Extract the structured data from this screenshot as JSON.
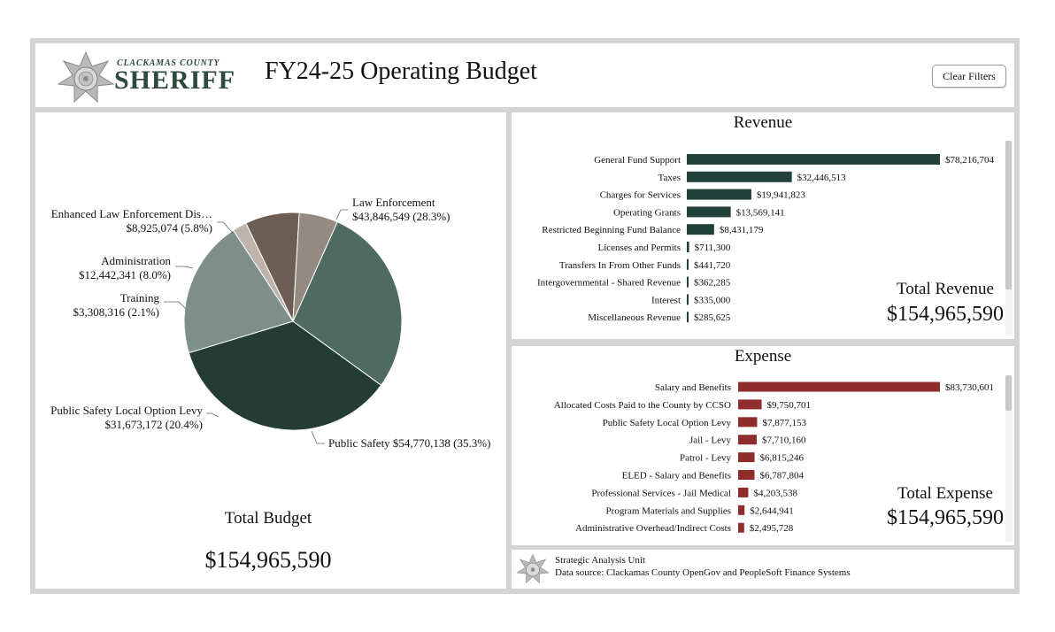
{
  "header": {
    "logo_county": "CLACKAMAS COUNTY",
    "logo_sheriff": "SHERIFF",
    "title": "FY24-25 Operating Budget",
    "clear_filters_label": "Clear Filters"
  },
  "pie": {
    "total_label": "Total Budget",
    "total_value": "$154,965,590",
    "labels": [
      {
        "line1": "Law Enforcement",
        "line2": "$43,846,549 (28.3%)"
      },
      {
        "line1": "Public Safety $54,770,138 (35.3%)",
        "line2": ""
      },
      {
        "line1": "Public Safety Local Option Levy",
        "line2": "$31,673,172 (20.4%)"
      },
      {
        "line1": "Training",
        "line2": "$3,308,316 (2.1%)"
      },
      {
        "line1": "Administration",
        "line2": "$12,442,341 (8.0%)"
      },
      {
        "line1": "Enhanced Law Enforcement Dis…",
        "line2": "$8,925,074 (5.8%)"
      }
    ]
  },
  "revenue": {
    "title": "Revenue",
    "total_label": "Total Revenue",
    "total_value": "$154,965,590",
    "color": "#22413a"
  },
  "expense": {
    "title": "Expense",
    "total_label": "Total Expense",
    "total_value": "$154,965,590",
    "color": "#8f2d2d"
  },
  "footer": {
    "line1": "Strategic Analysis Unit",
    "line2": "Data source: Clackamas County OpenGov and PeopleSoft Finance Systems"
  },
  "chart_data": [
    {
      "type": "pie",
      "title": "",
      "slices": [
        {
          "name": "Law Enforcement",
          "value": 43846549,
          "percent": 28.3,
          "color": "#4f6a61"
        },
        {
          "name": "Public Safety",
          "value": 54770138,
          "percent": 35.3,
          "color": "#233d35"
        },
        {
          "name": "Public Safety Local Option Levy",
          "value": 31673172,
          "percent": 20.4,
          "color": "#7d8f88"
        },
        {
          "name": "Training",
          "value": 3308316,
          "percent": 2.1,
          "color": "#bdb4ae"
        },
        {
          "name": "Administration",
          "value": 12442341,
          "percent": 8.0,
          "color": "#6d5e54"
        },
        {
          "name": "Enhanced Law Enforcement Dis…",
          "value": 8925074,
          "percent": 5.8,
          "color": "#958a82"
        }
      ]
    },
    {
      "type": "bar",
      "title": "Revenue",
      "orientation": "horizontal",
      "categories": [
        "General Fund Support",
        "Taxes",
        "Charges for Services",
        "Operating Grants",
        "Restricted Beginning Fund Balance",
        "Licenses and Permits",
        "Transfers In From Other Funds",
        "Intergovernmental - Shared Revenue",
        "Interest",
        "Miscellaneous Revenue"
      ],
      "values": [
        78216704,
        32446513,
        19941823,
        13569141,
        8431179,
        711300,
        441720,
        362285,
        335000,
        285625
      ],
      "value_labels": [
        "$78,216,704",
        "$32,446,513",
        "$19,941,823",
        "$13,569,141",
        "$8,431,179",
        "$711,300",
        "$441,720",
        "$362,285",
        "$335,000",
        "$285,625"
      ]
    },
    {
      "type": "bar",
      "title": "Expense",
      "orientation": "horizontal",
      "categories": [
        "Salary and Benefits",
        "Allocated Costs Paid to the County by CCSO",
        "Public Safety Local Option Levy",
        "Jail - Levy",
        "Patrol - Levy",
        "ELED - Salary and Benefits",
        "Professional Services - Jail Medical",
        "Program Materials and Supplies",
        "Administrative Overhead/Indirect Costs"
      ],
      "values": [
        83730601,
        9750701,
        7877153,
        7710160,
        6815246,
        6787804,
        4203538,
        2644941,
        2495728
      ],
      "value_labels": [
        "$83,730,601",
        "$9,750,701",
        "$7,877,153",
        "$7,710,160",
        "$6,815,246",
        "$6,787,804",
        "$4,203,538",
        "$2,644,941",
        "$2,495,728"
      ]
    }
  ]
}
